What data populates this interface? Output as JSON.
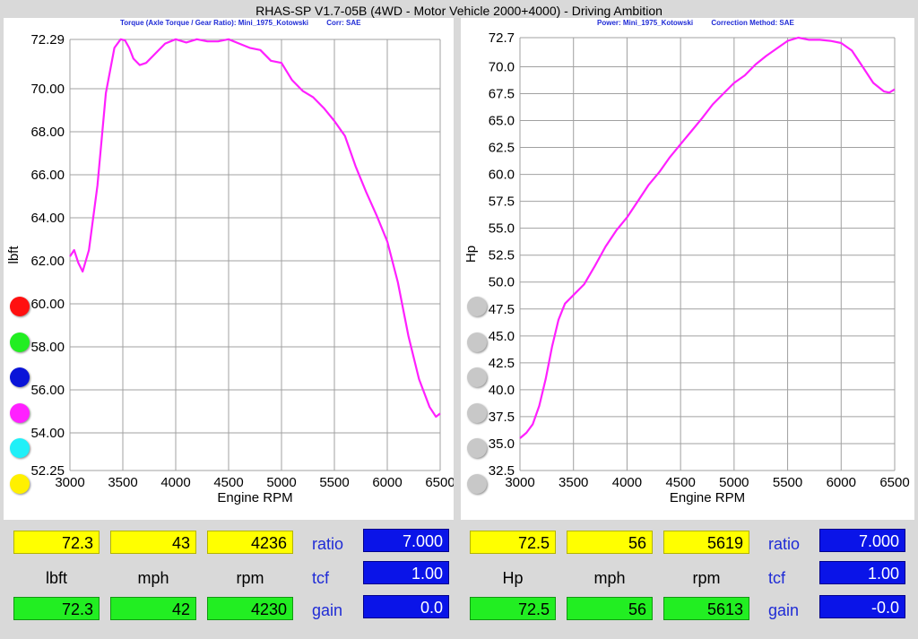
{
  "window": {
    "title": "RHAS-SP V1.7-05B   (4WD - Motor Vehicle 2000+4000) - Driving Ambition"
  },
  "left_panel": {
    "subtitle_parts": [
      "Torque (Axle Torque / Gear Ratio): Mini_1975_Kotowski",
      "Corr: SAE"
    ],
    "legend_colors": [
      "#ff1010",
      "#22ee22",
      "#0a14d8",
      "#ff20ff",
      "#20f0f8",
      "#fff000"
    ]
  },
  "right_panel": {
    "subtitle_parts": [
      "Power: Mini_1975_Kotowski",
      "Correction Method: SAE"
    ],
    "legend_colors": [
      "#c8c8c8",
      "#c8c8c8",
      "#c8c8c8",
      "#c8c8c8",
      "#c8c8c8",
      "#c8c8c8"
    ]
  },
  "chart_data": [
    {
      "type": "line",
      "title": "",
      "xlabel": "Engine RPM",
      "ylabel": "lbft",
      "xlim": [
        3000,
        6500
      ],
      "ylim": [
        52.25,
        72.29
      ],
      "xticks": [
        "3000",
        "3500",
        "4000",
        "4500",
        "5000",
        "5500",
        "6000",
        "6500"
      ],
      "yticks": [
        "52.25",
        "54.00",
        "56.00",
        "58.00",
        "60.00",
        "62.00",
        "64.00",
        "66.00",
        "68.00",
        "70.00",
        "72.29"
      ],
      "ytick_values": [
        52.25,
        54,
        56,
        58,
        60,
        62,
        64,
        66,
        68,
        70,
        72.29
      ],
      "grid": true,
      "line_color": "#ff20ff",
      "series": [
        {
          "x": [
            3000,
            3040,
            3080,
            3120,
            3180,
            3260,
            3340,
            3420,
            3480,
            3520,
            3560,
            3600,
            3660,
            3720,
            3800,
            3900,
            4000,
            4100,
            4200,
            4300,
            4400,
            4500,
            4600,
            4700,
            4800,
            4900,
            5000,
            5100,
            5200,
            5300,
            5400,
            5500,
            5600,
            5700,
            5800,
            5900,
            6000,
            6100,
            6200,
            6300,
            6400,
            6460,
            6500
          ],
          "y": [
            62.2,
            62.5,
            61.9,
            61.5,
            62.5,
            65.5,
            69.8,
            71.9,
            72.3,
            72.25,
            71.9,
            71.4,
            71.1,
            71.2,
            71.6,
            72.1,
            72.3,
            72.15,
            72.3,
            72.2,
            72.2,
            72.3,
            72.1,
            71.9,
            71.8,
            71.3,
            71.2,
            70.4,
            69.9,
            69.6,
            69.1,
            68.5,
            67.8,
            66.4,
            65.2,
            64.1,
            62.9,
            61.0,
            58.5,
            56.5,
            55.2,
            54.75,
            54.9
          ]
        }
      ]
    },
    {
      "type": "line",
      "title": "",
      "xlabel": "Engine RPM",
      "ylabel": "Hp",
      "xlim": [
        3000,
        6500
      ],
      "ylim": [
        32.5,
        72.7
      ],
      "xticks": [
        "3000",
        "3500",
        "4000",
        "4500",
        "5000",
        "5500",
        "6000",
        "6500"
      ],
      "yticks": [
        "32.5",
        "35.0",
        "37.5",
        "40.0",
        "42.5",
        "45.0",
        "47.5",
        "50.0",
        "52.5",
        "55.0",
        "57.5",
        "60.0",
        "62.5",
        "65.0",
        "67.5",
        "70.0",
        "72.7"
      ],
      "ytick_values": [
        32.5,
        35,
        37.5,
        40,
        42.5,
        45,
        47.5,
        50,
        52.5,
        55,
        57.5,
        60,
        62.5,
        65,
        67.5,
        70,
        72.7
      ],
      "grid": true,
      "line_color": "#ff20ff",
      "series": [
        {
          "x": [
            3000,
            3060,
            3120,
            3180,
            3240,
            3300,
            3360,
            3420,
            3500,
            3600,
            3700,
            3800,
            3900,
            4000,
            4100,
            4200,
            4300,
            4400,
            4500,
            4600,
            4700,
            4800,
            4900,
            5000,
            5100,
            5200,
            5300,
            5400,
            5500,
            5600,
            5700,
            5800,
            5900,
            6000,
            6100,
            6200,
            6300,
            6400,
            6450,
            6500
          ],
          "y": [
            35.5,
            36.0,
            36.8,
            38.5,
            41.0,
            44.0,
            46.5,
            48.0,
            48.8,
            49.8,
            51.5,
            53.3,
            54.8,
            56.0,
            57.5,
            59.0,
            60.2,
            61.6,
            62.8,
            64.0,
            65.2,
            66.5,
            67.5,
            68.5,
            69.2,
            70.2,
            71.0,
            71.7,
            72.4,
            72.7,
            72.5,
            72.5,
            72.4,
            72.2,
            71.5,
            70.0,
            68.5,
            67.7,
            67.6,
            67.9
          ]
        }
      ]
    }
  ],
  "left_readout": {
    "value_top_1": "72.3",
    "value_top_2": "43",
    "value_top_3": "4236",
    "unit_1": "lbft",
    "unit_2": "mph",
    "unit_3": "rpm",
    "value_bottom_1": "72.3",
    "value_bottom_2": "42",
    "value_bottom_3": "4230",
    "ratio_label": "ratio",
    "ratio_value": "7.000",
    "tcf_label": "tcf",
    "tcf_value": "1.00",
    "gain_label": "gain",
    "gain_value": "0.0"
  },
  "right_readout": {
    "value_top_1": "72.5",
    "value_top_2": "56",
    "value_top_3": "5619",
    "unit_1": "Hp",
    "unit_2": "mph",
    "unit_3": "rpm",
    "value_bottom_1": "72.5",
    "value_bottom_2": "56",
    "value_bottom_3": "5613",
    "ratio_label": "ratio",
    "ratio_value": "7.000",
    "tcf_label": "tcf",
    "tcf_value": "1.00",
    "gain_label": "gain",
    "gain_value": "-0.0"
  }
}
